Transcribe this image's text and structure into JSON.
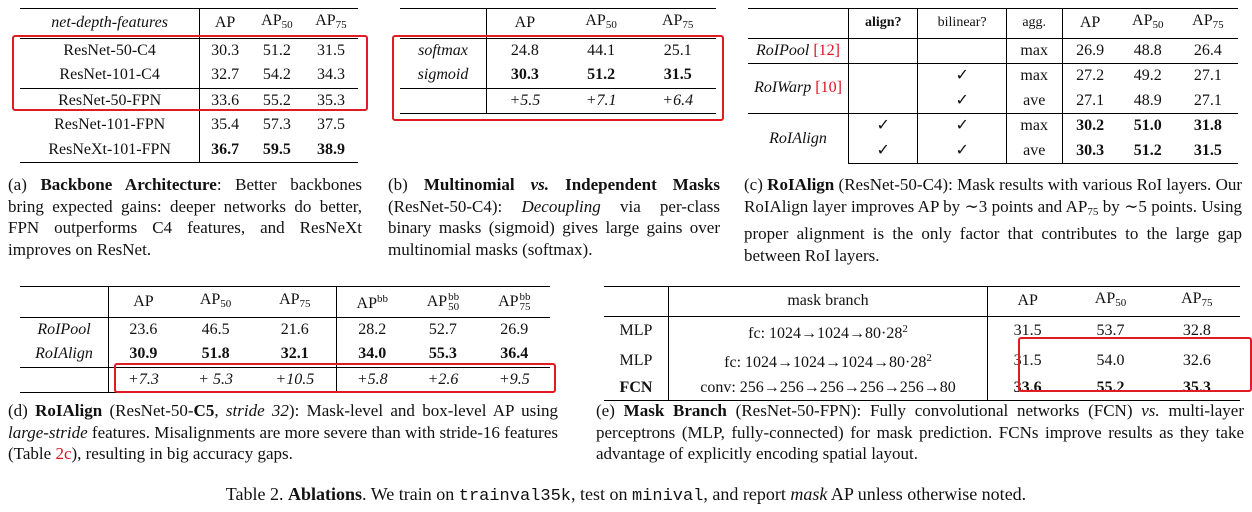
{
  "table_a": {
    "header": [
      "net-depth-features",
      "AP",
      "AP50",
      "AP75"
    ],
    "rows": [
      [
        "ResNet-50-C4",
        "30.3",
        "51.2",
        "31.5"
      ],
      [
        "ResNet-101-C4",
        "32.7",
        "54.2",
        "34.3"
      ],
      [
        "ResNet-50-FPN",
        "33.6",
        "55.2",
        "35.3"
      ],
      [
        "ResNet-101-FPN",
        "35.4",
        "57.3",
        "37.5"
      ],
      [
        "ResNeXt-101-FPN",
        "36.7",
        "59.5",
        "38.9"
      ]
    ],
    "caption": {
      "label": "(a)",
      "title": "Backbone Architecture",
      "text": ": Better backbones bring expected gains: deeper networks do better, FPN outperforms C4 features, and ResNeXt improves on ResNet."
    }
  },
  "table_b": {
    "header": [
      "",
      "AP",
      "AP50",
      "AP75"
    ],
    "rows": [
      [
        "softmax",
        "24.8",
        "44.1",
        "25.1"
      ],
      [
        "sigmoid",
        "30.3",
        "51.2",
        "31.5"
      ],
      [
        "",
        "+5.5",
        "+7.1",
        "+6.4"
      ]
    ],
    "caption": {
      "label": "(b)",
      "title_1": "Multinomial",
      "title_vs": "vs.",
      "title_2": "Independent Masks",
      "text_1": "(ResNet-50-C4): ",
      "text_it": "Decoupling",
      "text_2": " via per-class binary masks (sigmoid) gives large gains over multinomial masks (softmax)."
    }
  },
  "table_c": {
    "header": [
      "",
      "align?",
      "bilinear?",
      "agg.",
      "AP",
      "AP50",
      "AP75"
    ],
    "roipool": {
      "name": "RoIPool",
      "ref": "[12]",
      "agg": "max",
      "ap": "26.9",
      "ap50": "48.8",
      "ap75": "26.4"
    },
    "roiwarp": {
      "name": "RoIWarp",
      "ref": "[10]",
      "rows": [
        {
          "bilinear": "✓",
          "agg": "max",
          "ap": "27.2",
          "ap50": "49.2",
          "ap75": "27.1"
        },
        {
          "bilinear": "✓",
          "agg": "ave",
          "ap": "27.1",
          "ap50": "48.9",
          "ap75": "27.1"
        }
      ]
    },
    "roialign": {
      "name": "RoIAlign",
      "rows": [
        {
          "align": "✓",
          "bilinear": "✓",
          "agg": "max",
          "ap": "30.2",
          "ap50": "51.0",
          "ap75": "31.8"
        },
        {
          "align": "✓",
          "bilinear": "✓",
          "agg": "ave",
          "ap": "30.3",
          "ap50": "51.2",
          "ap75": "31.5"
        }
      ]
    },
    "caption": {
      "label": "(c)",
      "title": "RoIAlign",
      "text_1": " (ResNet-50-C4): Mask results with various RoI layers. Our RoIAlign layer improves AP by ∼3 points and AP",
      "text_sub": "75",
      "text_2": " by ∼5 points. Using proper alignment is the only factor that contributes to the large gap between RoI layers."
    }
  },
  "table_d": {
    "header": [
      "",
      "AP",
      "AP50",
      "AP75",
      "APbb",
      "APbb50",
      "APbb75"
    ],
    "rows": [
      [
        "RoIPool",
        "23.6",
        "46.5",
        "21.6",
        "28.2",
        "52.7",
        "26.9"
      ],
      [
        "RoIAlign",
        "30.9",
        "51.8",
        "32.1",
        "34.0",
        "55.3",
        "36.4"
      ],
      [
        "",
        "+7.3",
        "+ 5.3",
        "+10.5",
        "+5.8",
        "+2.6",
        "+9.5"
      ]
    ],
    "caption": {
      "label": "(d)",
      "title": "RoIAlign",
      "text_1": " (ResNet-50-",
      "text_c5": "C5",
      "text_stride": "stride 32",
      "text_2": "): Mask-level and box-level AP using ",
      "text_it": "large-stride",
      "text_3": " features. Misalignments are more severe than with stride-16 features (Table ",
      "text_ref": "2c",
      "text_4": "), resulting in big accuracy gaps."
    }
  },
  "table_e": {
    "header": [
      "",
      "mask branch",
      "AP",
      "AP50",
      "AP75"
    ],
    "rows": [
      [
        "MLP",
        "fc: 1024→1024→80·28",
        "31.5",
        "53.7",
        "32.8"
      ],
      [
        "MLP",
        "fc: 1024→1024→1024→80·28",
        "31.5",
        "54.0",
        "32.6"
      ],
      [
        "FCN",
        "conv: 256→256→256→256→256→80",
        "33.6",
        "55.2",
        "35.3"
      ]
    ],
    "caption": {
      "label": "(e)",
      "title": "Mask Branch",
      "text_1": " (ResNet-50-FPN): Fully convolutional networks (FCN) ",
      "text_vs": "vs.",
      "text_2": " multi-layer perceptrons (MLP, fully-connected) for mask prediction. FCNs improve results as they take advantage of explicitly encoding spatial layout."
    }
  },
  "main_caption": {
    "prefix": "Table 2. ",
    "title": "Ablations",
    "text_1": ". We train on ",
    "code_1": "trainval35k",
    "text_2": ", test on ",
    "code_2": "minival",
    "text_3": ", and report ",
    "text_it": "mask",
    "text_4": " AP unless otherwise noted."
  }
}
